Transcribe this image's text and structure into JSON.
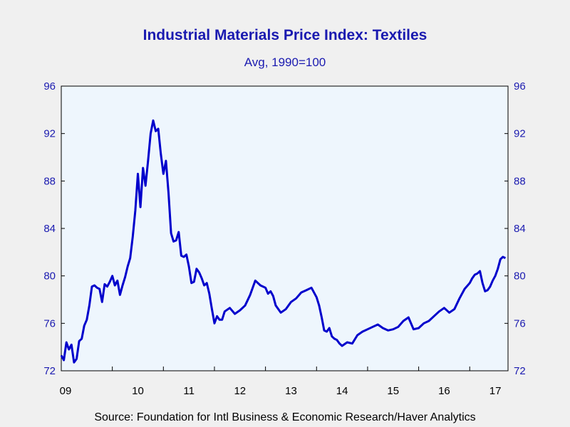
{
  "title": "Industrial Materials Price Index: Textiles",
  "subtitle": "Avg, 1990=100",
  "source": "Source:  Foundation for Intl Business & Economic Research/Haver Analytics",
  "colors": {
    "line": "#0000cc",
    "plot_bg": "#eef6fd",
    "text": "#1a1ab0"
  },
  "chart_data": {
    "type": "line",
    "title": "Industrial Materials Price Index: Textiles",
    "subtitle": "Avg, 1990=100",
    "xlabel": "",
    "ylabel": "",
    "ylim": [
      72,
      96
    ],
    "yticks": [
      72,
      76,
      80,
      84,
      88,
      92,
      96
    ],
    "y_axis_sides": "left-and-right",
    "grid": false,
    "legend": "none",
    "xlim": [
      2009.0,
      2017.75
    ],
    "x_tick_labels": [
      "09",
      "10",
      "11",
      "12",
      "13",
      "14",
      "15",
      "16",
      "17"
    ],
    "series": [
      {
        "x": [
          2009.0,
          2009.05,
          2009.1,
          2009.15,
          2009.2,
          2009.25,
          2009.3,
          2009.35,
          2009.4,
          2009.45,
          2009.5,
          2009.55,
          2009.6,
          2009.65,
          2009.7,
          2009.75,
          2009.8,
          2009.85,
          2009.9,
          2009.95,
          2010.0,
          2010.05,
          2010.1,
          2010.15,
          2010.2,
          2010.25,
          2010.3,
          2010.35,
          2010.4,
          2010.45,
          2010.5,
          2010.55,
          2010.6,
          2010.65,
          2010.7,
          2010.75,
          2010.8,
          2010.85,
          2010.9,
          2010.95,
          2011.0,
          2011.05,
          2011.1,
          2011.15,
          2011.2,
          2011.25,
          2011.3,
          2011.35,
          2011.4,
          2011.45,
          2011.5,
          2011.55,
          2011.6,
          2011.65,
          2011.7,
          2011.75,
          2011.8,
          2011.85,
          2011.9,
          2011.95,
          2012.0,
          2012.05,
          2012.1,
          2012.15,
          2012.2,
          2012.3,
          2012.4,
          2012.5,
          2012.6,
          2012.7,
          2012.8,
          2012.9,
          2013.0,
          2013.05,
          2013.1,
          2013.15,
          2013.2,
          2013.3,
          2013.4,
          2013.5,
          2013.6,
          2013.7,
          2013.8,
          2013.9,
          2014.0,
          2014.05,
          2014.1,
          2014.15,
          2014.2,
          2014.25,
          2014.3,
          2014.35,
          2014.4,
          2014.45,
          2014.5,
          2014.6,
          2014.7,
          2014.8,
          2014.9,
          2015.0,
          2015.1,
          2015.2,
          2015.3,
          2015.4,
          2015.5,
          2015.6,
          2015.7,
          2015.8,
          2015.9,
          2016.0,
          2016.1,
          2016.2,
          2016.3,
          2016.4,
          2016.5,
          2016.6,
          2016.7,
          2016.8,
          2016.9,
          2017.0,
          2017.05,
          2017.1,
          2017.15,
          2017.2,
          2017.25,
          2017.3,
          2017.35,
          2017.4,
          2017.45,
          2017.5,
          2017.55,
          2017.6,
          2017.65,
          2017.7
        ],
        "y": [
          73.3,
          72.9,
          74.4,
          73.8,
          74.2,
          72.7,
          73.0,
          74.5,
          74.7,
          75.8,
          76.3,
          77.5,
          79.1,
          79.2,
          79.0,
          78.9,
          77.8,
          79.3,
          79.1,
          79.5,
          80.0,
          79.2,
          79.6,
          78.4,
          79.2,
          79.9,
          80.8,
          81.5,
          83.3,
          85.5,
          88.6,
          85.8,
          89.1,
          87.6,
          89.7,
          92.0,
          93.1,
          92.2,
          92.4,
          90.3,
          88.6,
          89.7,
          87.0,
          83.6,
          82.9,
          83.0,
          83.7,
          81.7,
          81.6,
          81.8,
          80.8,
          79.4,
          79.5,
          80.6,
          80.3,
          79.8,
          79.2,
          79.4,
          78.5,
          77.2,
          76.0,
          76.6,
          76.3,
          76.3,
          77.0,
          77.3,
          76.8,
          77.1,
          77.5,
          78.4,
          79.6,
          79.2,
          79.0,
          78.5,
          78.7,
          78.3,
          77.5,
          76.9,
          77.2,
          77.8,
          78.1,
          78.6,
          78.8,
          79.0,
          78.2,
          77.5,
          76.5,
          75.4,
          75.3,
          75.6,
          74.9,
          74.7,
          74.6,
          74.3,
          74.1,
          74.4,
          74.3,
          75.0,
          75.3,
          75.5,
          75.7,
          75.9,
          75.6,
          75.4,
          75.5,
          75.7,
          76.2,
          76.5,
          75.5,
          75.6,
          76.0,
          76.2,
          76.6,
          77.0,
          77.3,
          76.9,
          77.2,
          78.1,
          78.9,
          79.4,
          79.8,
          80.1,
          80.2,
          80.4,
          79.4,
          78.7,
          78.8,
          79.1,
          79.6,
          80.0,
          80.6,
          81.4,
          81.6,
          81.5
        ]
      }
    ]
  }
}
